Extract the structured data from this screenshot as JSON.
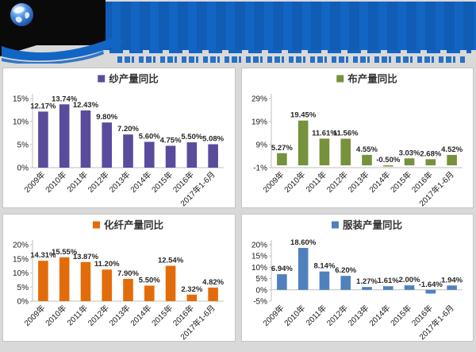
{
  "header": {
    "logo_icon": "globe-icon",
    "banner_color": "#1365C4",
    "dark_color": "#0A0A0A",
    "title_text_legible": false
  },
  "chart_data": [
    {
      "type": "bar",
      "title": "纱产量同比",
      "color": "#5B4B9D",
      "unit": "%",
      "legend_position": "top",
      "grid": false,
      "xlabel": "",
      "ylabel": "",
      "categories": [
        "2009年",
        "2010年",
        "2011年",
        "2012年",
        "2013年",
        "2014年",
        "2015年",
        "2016年",
        "2017年1-6月"
      ],
      "values": [
        12.17,
        13.74,
        12.43,
        9.8,
        7.2,
        5.6,
        4.75,
        5.5,
        5.08
      ],
      "yticks": [
        0,
        5,
        10,
        15
      ],
      "ymin": 0,
      "ymax": 15,
      "axis_y": 0
    },
    {
      "type": "bar",
      "title": "布产量同比",
      "color": "#76923C",
      "unit": "%",
      "legend_position": "top",
      "grid": false,
      "xlabel": "",
      "ylabel": "",
      "categories": [
        "2009年",
        "2010年",
        "2011年",
        "2012年",
        "2013年",
        "2014年",
        "2015年",
        "2016年",
        "2017年1-6月"
      ],
      "values": [
        5.27,
        19.45,
        11.61,
        11.56,
        4.55,
        -0.5,
        3.03,
        2.68,
        4.52
      ],
      "yticks": [
        -1,
        9,
        19,
        29
      ],
      "ymin": -1,
      "ymax": 29,
      "axis_y": -1
    },
    {
      "type": "bar",
      "title": "化纤产量同比",
      "color": "#E36C0A",
      "unit": "%",
      "legend_position": "top",
      "grid": false,
      "xlabel": "",
      "ylabel": "",
      "categories": [
        "2009年",
        "2010年",
        "2011年",
        "2012年",
        "2013年",
        "2014年",
        "2015年",
        "2016年",
        "2017年1-6月"
      ],
      "values": [
        14.31,
        15.55,
        13.87,
        11.2,
        7.9,
        5.5,
        12.54,
        2.32,
        4.82
      ],
      "yticks": [
        0,
        5,
        10,
        15,
        20
      ],
      "ymin": 0,
      "ymax": 20,
      "axis_y": 0
    },
    {
      "type": "bar",
      "title": "服装产量同比",
      "color": "#4F81BD",
      "unit": "%",
      "legend_position": "top",
      "grid": false,
      "xlabel": "",
      "ylabel": "",
      "categories": [
        "2009年",
        "2010年",
        "2011年",
        "2012年",
        "2013年",
        "2014年",
        "2015年",
        "2016年",
        "2017年1-6月"
      ],
      "values": [
        6.94,
        18.6,
        8.14,
        6.2,
        1.27,
        1.61,
        2.0,
        -1.64,
        1.94
      ],
      "yticks": [
        -5,
        0,
        5,
        10,
        15,
        20
      ],
      "ymin": -5,
      "ymax": 20,
      "axis_y": 0
    }
  ]
}
